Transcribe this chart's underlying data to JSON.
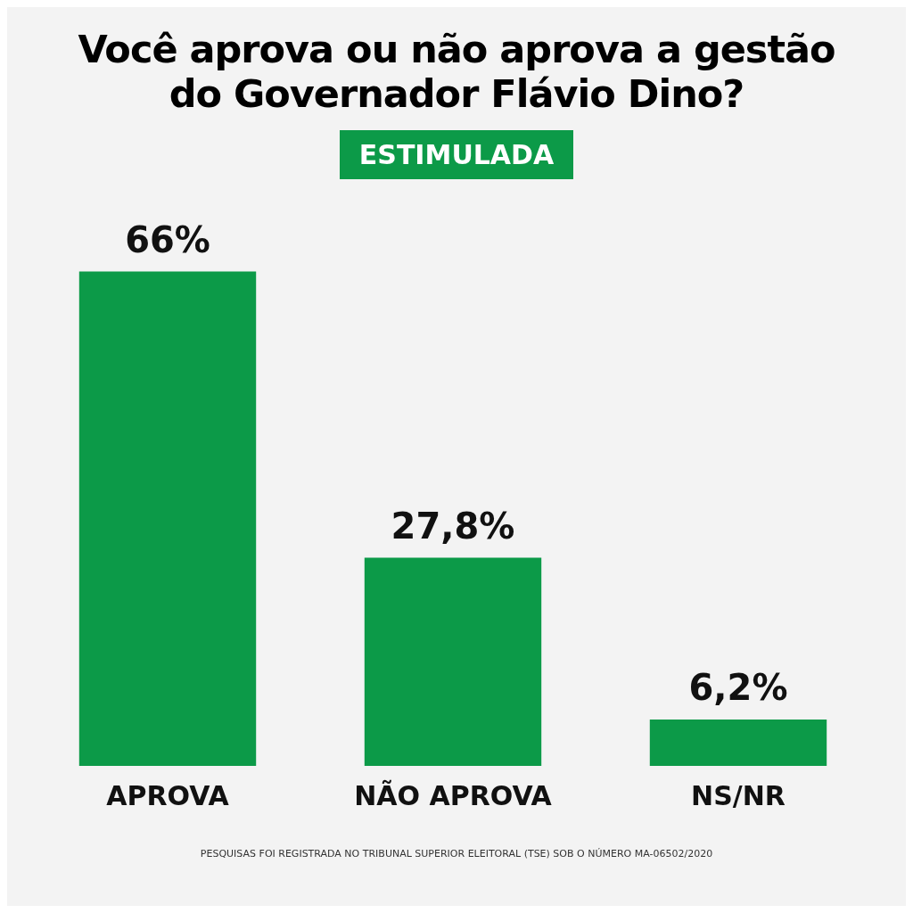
{
  "chart_data": {
    "type": "bar",
    "title": "Você aprova ou não aprova a gestão do Governador Flávio Dino?",
    "subtitle": "ESTIMULADA",
    "categories": [
      "APROVA",
      "NÃO APROVA",
      "NS/NR"
    ],
    "values": [
      66,
      27.8,
      6.2
    ],
    "value_labels": [
      "66%",
      "27,8%",
      "6,2%"
    ],
    "color": "#0c9a48",
    "tick_labels": "x",
    "grid": false,
    "legend": false,
    "annotations": [
      "PESQUISAS FOI REGISTRADA NO TRIBUNAL SUPERIOR ELEITORAL (TSE) SOB O NÚMERO MA-06502/2020"
    ]
  }
}
